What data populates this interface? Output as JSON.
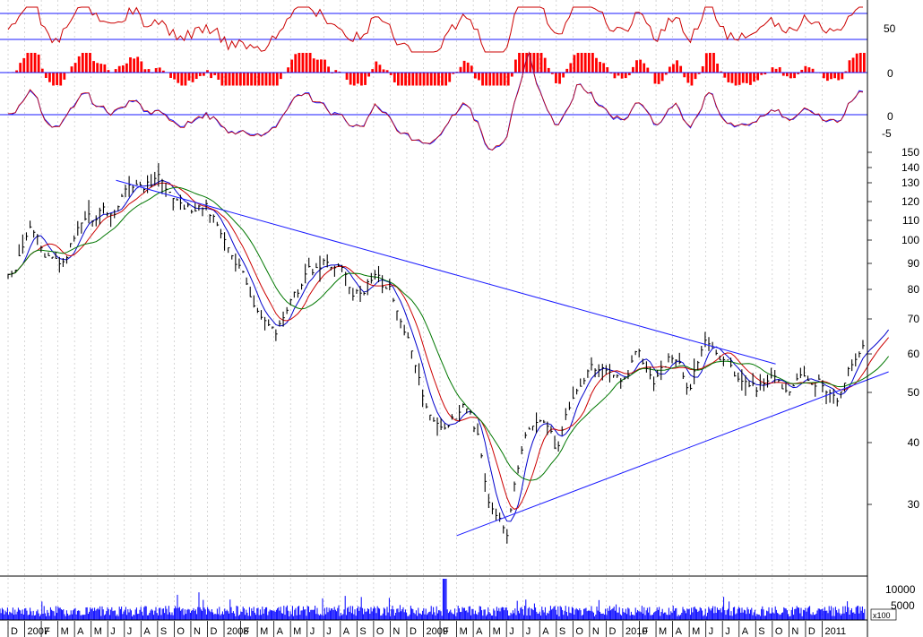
{
  "chart_data": {
    "type": "line",
    "title": "",
    "scale": "log",
    "grid": true,
    "colors": {
      "price_bars": "#000000",
      "ma_fast": "#0000cc",
      "ma_mid": "#cc0000",
      "ma_slow": "#007700",
      "trendline": "#1a1aff",
      "indicator_line": "#cc0000",
      "histogram": "#ff0000",
      "volume": "#0000ff",
      "gridline": "#bbbbbb"
    },
    "panels": {
      "oscillator": {
        "tick_labels": [
          "50"
        ],
        "levels": [
          70,
          30
        ]
      },
      "histogram": {
        "tick_labels": [
          "0"
        ]
      },
      "momentum": {
        "tick_labels": [
          "0",
          "-5"
        ]
      },
      "price": {
        "ylim": [
          24,
          150
        ],
        "tick_labels": [
          "150",
          "140",
          "130",
          "120",
          "110",
          "100",
          "90",
          "80",
          "70",
          "60",
          "50",
          "40",
          "30"
        ]
      },
      "volume": {
        "tick_labels": [
          "10000",
          "5000"
        ],
        "unit_label": "x100"
      }
    },
    "x_axis": {
      "labels": [
        "D",
        "2007",
        "F",
        "M",
        "A",
        "M",
        "J",
        "J",
        "A",
        "S",
        "O",
        "N",
        "D",
        "2008",
        "F",
        "M",
        "A",
        "M",
        "J",
        "J",
        "A",
        "S",
        "O",
        "N",
        "D",
        "2009",
        "F",
        "M",
        "A",
        "M",
        "J",
        "J",
        "A",
        "S",
        "O",
        "N",
        "D",
        "2010",
        "F",
        "M",
        "A",
        "M",
        "J",
        "J",
        "A",
        "S",
        "O",
        "N",
        "D",
        "2011"
      ]
    },
    "series": [
      {
        "kind": "price",
        "x": [
          0,
          1.5,
          3,
          4.5,
          6,
          7.5,
          9,
          10.5,
          12,
          13,
          14,
          15,
          16,
          17,
          18,
          19,
          20,
          21,
          22,
          23,
          24,
          25,
          26,
          26.8,
          27.5,
          28.2,
          29,
          30,
          31,
          32,
          33,
          34,
          35,
          36,
          37,
          38,
          39,
          40,
          41,
          42,
          43,
          44,
          45,
          46,
          47,
          48,
          49,
          50,
          51,
          52,
          53
        ],
        "values": [
          85,
          105,
          88,
          108,
          115,
          128,
          131,
          118,
          117,
          100,
          88,
          75,
          66,
          74,
          86,
          90,
          86,
          79,
          84,
          80,
          64,
          48,
          42,
          45,
          47,
          42,
          30,
          26,
          40,
          44,
          38,
          48,
          58,
          57,
          52,
          60,
          53,
          60,
          52,
          66,
          58,
          54,
          50,
          55,
          48,
          54,
          53,
          50,
          59,
          62,
          69
        ]
      }
    ],
    "trendlines": [
      {
        "name": "upper",
        "x": [
          6.5,
          46.2
        ],
        "values": [
          132,
          57
        ]
      },
      {
        "name": "lower",
        "x": [
          27,
          53
        ],
        "values": [
          26,
          55
        ]
      }
    ]
  }
}
